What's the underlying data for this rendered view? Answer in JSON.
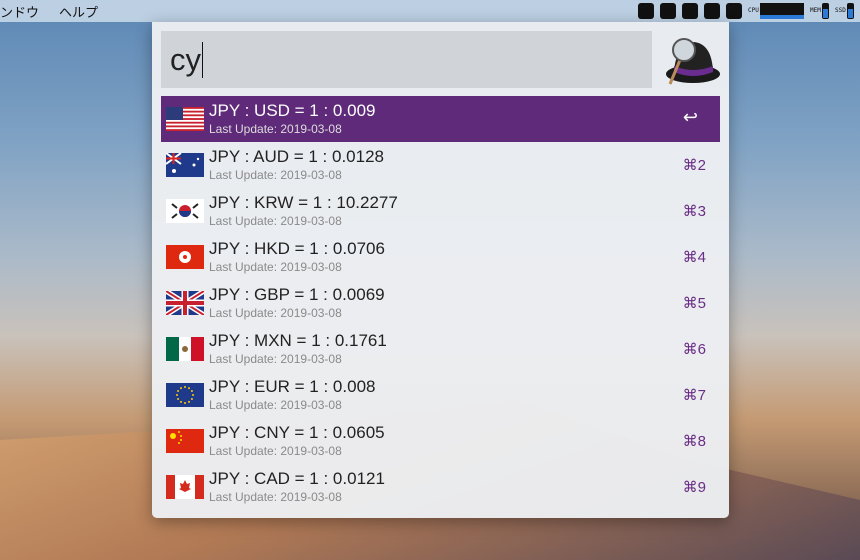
{
  "menubar": {
    "items": [
      "ンドウ",
      "ヘルプ"
    ],
    "tray": [
      "dropbox-icon",
      "download-icon",
      "evernote-icon",
      "screen-icon",
      "alfred-hat-icon"
    ],
    "cpu_label": "CPU",
    "mem_label": "MEM",
    "ssd_label": "SSD"
  },
  "search": {
    "value": "cy"
  },
  "accent": "#5e2a79",
  "results": [
    {
      "code": "us",
      "title": "JPY : USD = 1 : 0.009",
      "sub": "Last Update: 2019-03-08",
      "shortcut": "↩"
    },
    {
      "code": "au",
      "title": "JPY : AUD = 1 : 0.0128",
      "sub": "Last Update: 2019-03-08",
      "shortcut": "⌘2"
    },
    {
      "code": "kr",
      "title": "JPY : KRW = 1 : 10.2277",
      "sub": "Last Update: 2019-03-08",
      "shortcut": "⌘3"
    },
    {
      "code": "hk",
      "title": "JPY : HKD = 1 : 0.0706",
      "sub": "Last Update: 2019-03-08",
      "shortcut": "⌘4"
    },
    {
      "code": "gb",
      "title": "JPY : GBP = 1 : 0.0069",
      "sub": "Last Update: 2019-03-08",
      "shortcut": "⌘5"
    },
    {
      "code": "mx",
      "title": "JPY : MXN = 1 : 0.1761",
      "sub": "Last Update: 2019-03-08",
      "shortcut": "⌘6"
    },
    {
      "code": "eu",
      "title": "JPY : EUR = 1 : 0.008",
      "sub": "Last Update: 2019-03-08",
      "shortcut": "⌘7"
    },
    {
      "code": "cn",
      "title": "JPY : CNY = 1 : 0.0605",
      "sub": "Last Update: 2019-03-08",
      "shortcut": "⌘8"
    },
    {
      "code": "ca",
      "title": "JPY : CAD = 1 : 0.0121",
      "sub": "Last Update: 2019-03-08",
      "shortcut": "⌘9"
    }
  ]
}
